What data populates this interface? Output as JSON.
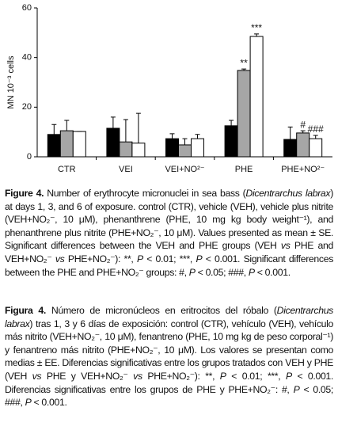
{
  "chart_data": {
    "type": "bar",
    "ylabel": "MN 10⁻³ cells",
    "categories": [
      "CTR",
      "VEI",
      "VEI+NO²⁻",
      "PHE",
      "PHE+NO²⁻"
    ],
    "series": [
      {
        "color": "#000000",
        "values": [
          9,
          11.5,
          7.3,
          12.5,
          7
        ],
        "errors": [
          4,
          4.5,
          2,
          2.2,
          5
        ],
        "annotations": [
          null,
          null,
          null,
          null,
          null
        ]
      },
      {
        "color": "#a6a6a6",
        "values": [
          10.5,
          6,
          4.8,
          34.8,
          9.6
        ],
        "errors": [
          4.2,
          9,
          2.5,
          0.6,
          0.9
        ],
        "annotations": [
          null,
          null,
          null,
          "**",
          "#"
        ]
      },
      {
        "color": "#ffffff",
        "values": [
          10.2,
          5.5,
          7.3,
          48.5,
          7.3
        ],
        "errors": [
          0,
          12,
          1.7,
          1,
          1.3
        ],
        "annotations": [
          null,
          null,
          null,
          "***",
          "###"
        ]
      }
    ],
    "ylim": [
      0,
      60
    ],
    "yticks": [
      0,
      20,
      40,
      60
    ]
  },
  "caption_en": {
    "label": "Figure 4.",
    "runs": [
      {
        "text": " Number of erythrocyte micronuclei in sea bass ("
      },
      {
        "text": "Dicentrarchus labrax",
        "italic": true
      },
      {
        "text": ") at days 1, 3, and 6 of exposure. control (CTR), vehicle (VEH), vehicle plus nitrite (VEH+NO₂⁻, 10 μM), phenanthrene (PHE, 10 mg kg body weight⁻¹), and phenanthrene plus nitrite (PHE+NO₂⁻, 10 μM). Values presented as mean ± SE. Significant differences between the VEH and PHE groups (VEH "
      },
      {
        "text": "vs",
        "italic": true
      },
      {
        "text": " PHE and VEH+NO₂⁻ "
      },
      {
        "text": "vs",
        "italic": true
      },
      {
        "text": " PHE+NO₂⁻): **, "
      },
      {
        "text": "P",
        "italic": true
      },
      {
        "text": " < 0.01; ***, "
      },
      {
        "text": "P",
        "italic": true
      },
      {
        "text": " < 0.001. Significant differences between the PHE and PHE+NO₂⁻ groups: #, "
      },
      {
        "text": "P",
        "italic": true
      },
      {
        "text": " < 0.05; ###, "
      },
      {
        "text": "P",
        "italic": true
      },
      {
        "text": " < 0.001."
      }
    ]
  },
  "caption_es": {
    "label": "Figura 4.",
    "runs": [
      {
        "text": " Número de micronúcleos en eritrocitos del róbalo ("
      },
      {
        "text": "Dicentrarchus labrax",
        "italic": true
      },
      {
        "text": ") tras 1, 3 y 6 días de exposición: control (CTR), vehículo (VEH), vehículo más nitrito (VEH+NO₂⁻, 10 μM), fenantreno (PHE, 10 mg kg de peso corporal⁻¹) y fenantreno más nitrito (PHE+NO₂⁻, 10 μM). Los valores se presentan como medias ± EE. Diferencias significativas entre los grupos tratados con VEH y PHE (VEH "
      },
      {
        "text": "vs",
        "italic": true
      },
      {
        "text": " PHE y VEH+NO₂⁻ "
      },
      {
        "text": "vs",
        "italic": true
      },
      {
        "text": " PHE+NO₂⁻): **, "
      },
      {
        "text": "P",
        "italic": true
      },
      {
        "text": " < 0.01; ***, "
      },
      {
        "text": "P",
        "italic": true
      },
      {
        "text": " < 0.001. Diferencias significativas entre los grupos de PHE y PHE+NO₂⁻: #, "
      },
      {
        "text": "P",
        "italic": true
      },
      {
        "text": " < 0.05; ###, "
      },
      {
        "text": "P",
        "italic": true
      },
      {
        "text": " < 0.001."
      }
    ]
  }
}
